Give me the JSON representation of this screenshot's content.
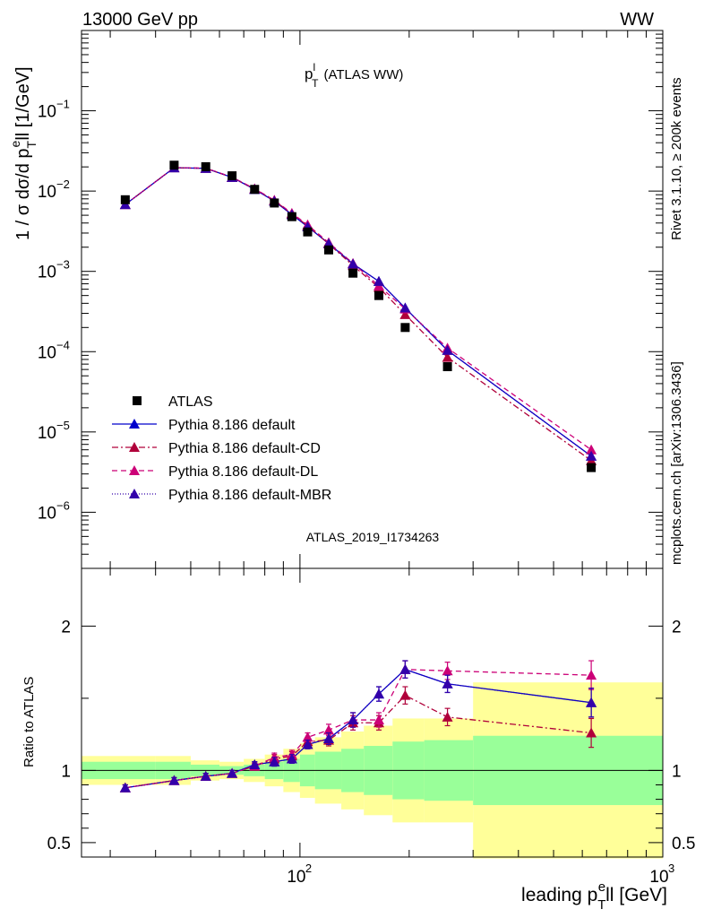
{
  "chart_data": {
    "type": "line",
    "header_left": "13000 GeV pp",
    "header_right": "WW",
    "title": "p",
    "title_sup": "l",
    "title_sub": "T",
    "title_suffix": "(ATLAS WW)",
    "side_text_top": "Rivet 3.1.10, ≥ 200k events",
    "side_text_bottom": "mcplots.cern.ch [arXiv:1306.3436]",
    "analysis_label": "ATLAS_2019_I1734263",
    "ylabel_main": "1 / σ  dσ/d p",
    "ylabel_main_sub": "T",
    "ylabel_main_sup": "e",
    "ylabel_main_end": "ll [1/GeV]",
    "ylabel_ratio": "Ratio to ATLAS",
    "xlabel": "leading p",
    "xlabel_sub": "T",
    "xlabel_sup": "e",
    "xlabel_end": "ll [GeV]",
    "xscale": "log",
    "xlim": [
      25,
      1000
    ],
    "ylim_main": [
      2e-07,
      1
    ],
    "ylim_ratio": [
      0.4,
      2.4
    ],
    "y_tick_labels_main": [
      "10",
      "10",
      "10",
      "10",
      "10",
      "10"
    ],
    "y_tick_exponents_main": [
      "−1",
      "−2",
      "−3",
      "−4",
      "−5",
      "−6"
    ],
    "y_tick_labels_ratio": [
      "0.5",
      "1",
      "2"
    ],
    "x_tick_labels": [
      "10",
      "10"
    ],
    "x_tick_exponents": [
      "2",
      "3"
    ],
    "x": [
      33,
      45,
      55,
      65,
      75,
      85,
      95,
      105,
      120,
      140,
      165,
      195,
      255,
      635
    ],
    "bin_edges": [
      25,
      40,
      50,
      60,
      70,
      80,
      90,
      100,
      110,
      130,
      150,
      180,
      220,
      300,
      1000
    ],
    "data": {
      "name": "ATLAS",
      "values": [
        0.0078,
        0.021,
        0.0201,
        0.0155,
        0.0105,
        0.0071,
        0.0048,
        0.0031,
        0.00185,
        0.00095,
        0.0005,
        0.0002,
        6.5e-05,
        3.6e-06
      ],
      "band_stat": [
        0.06,
        0.06,
        0.04,
        0.03,
        0.04,
        0.06,
        0.08,
        0.11,
        0.13,
        0.15,
        0.17,
        0.2,
        0.21,
        0.24
      ],
      "band_total": [
        0.1,
        0.1,
        0.07,
        0.06,
        0.08,
        0.11,
        0.15,
        0.19,
        0.23,
        0.27,
        0.31,
        0.36,
        0.36,
        0.61
      ]
    },
    "series": [
      {
        "name": "Pythia 8.186 default",
        "color": "#0000cc",
        "dash": "",
        "marker": "triangle",
        "values": [
          0.0068,
          0.0195,
          0.0192,
          0.0148,
          0.0105,
          0.0075,
          0.0051,
          0.0036,
          0.00222,
          0.00124,
          0.00075,
          0.00035,
          0.000104,
          5e-06
        ],
        "ratio": [
          0.88,
          0.93,
          0.96,
          0.98,
          1.04,
          1.06,
          1.08,
          1.18,
          1.22,
          1.35,
          1.53,
          1.7,
          1.6,
          1.47
        ],
        "ratio_err": [
          0.02,
          0.02,
          0.02,
          0.02,
          0.02,
          0.03,
          0.03,
          0.03,
          0.04,
          0.05,
          0.05,
          0.06,
          0.06,
          0.1
        ]
      },
      {
        "name": "Pythia 8.186 default-CD",
        "color": "#b0003a",
        "dash": "7 3 2 3",
        "marker": "triangle",
        "values": [
          0.0068,
          0.0195,
          0.0192,
          0.0148,
          0.0106,
          0.0076,
          0.0052,
          0.0037,
          0.0022,
          0.00118,
          0.00063,
          0.00029,
          8.5e-05,
          4.4e-06
        ],
        "ratio": [
          0.88,
          0.93,
          0.96,
          0.98,
          1.03,
          1.08,
          1.1,
          1.2,
          1.21,
          1.33,
          1.33,
          1.52,
          1.37,
          1.26
        ],
        "ratio_err": [
          0.02,
          0.02,
          0.02,
          0.02,
          0.02,
          0.03,
          0.03,
          0.03,
          0.04,
          0.05,
          0.05,
          0.06,
          0.06,
          0.1
        ]
      },
      {
        "name": "Pythia 8.186 default-DL",
        "color": "#cc0077",
        "dash": "6 4",
        "marker": "triangle",
        "values": [
          0.0068,
          0.0196,
          0.0193,
          0.0149,
          0.0107,
          0.0077,
          0.0053,
          0.0038,
          0.00228,
          0.00126,
          0.00066,
          0.00034,
          0.000111,
          6e-06
        ],
        "ratio": [
          0.88,
          0.93,
          0.96,
          0.98,
          1.03,
          1.09,
          1.11,
          1.23,
          1.28,
          1.35,
          1.35,
          1.7,
          1.69,
          1.66
        ],
        "ratio_err": [
          0.02,
          0.02,
          0.02,
          0.02,
          0.02,
          0.03,
          0.03,
          0.03,
          0.04,
          0.05,
          0.05,
          0.06,
          0.06,
          0.1
        ]
      },
      {
        "name": "Pythia 8.186 default-MBR",
        "color": "#3300aa",
        "dash": "1 2",
        "marker": "triangle",
        "values": [
          0.0068,
          0.0195,
          0.0192,
          0.0148,
          0.0105,
          0.0075,
          0.0051,
          0.0036,
          0.00222,
          0.00124,
          0.00075,
          0.00035,
          0.000104,
          5e-06
        ],
        "ratio": [
          0.88,
          0.93,
          0.96,
          0.98,
          1.04,
          1.06,
          1.08,
          1.18,
          1.22,
          1.35,
          1.53,
          1.7,
          1.6,
          1.47
        ],
        "ratio_err": [
          0.02,
          0.02,
          0.02,
          0.02,
          0.02,
          0.03,
          0.03,
          0.03,
          0.04,
          0.05,
          0.05,
          0.06,
          0.06,
          0.1
        ]
      }
    ],
    "legend_position": "bottom-left",
    "colors": {
      "stat_band": "#99ff99",
      "total_band": "#ffff99",
      "data_marker": "#000000"
    }
  }
}
